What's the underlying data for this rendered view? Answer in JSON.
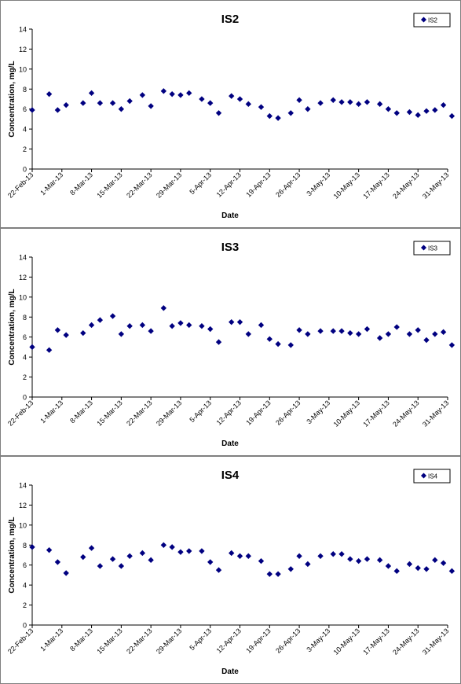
{
  "chart_data": [
    {
      "type": "scatter",
      "title": "IS2",
      "xlabel": "Date",
      "ylabel": "Concentration, mg/L",
      "ylim": [
        0,
        14
      ],
      "yticks": [
        "0",
        "2",
        "4",
        "6",
        "8",
        "10",
        "12",
        "14"
      ],
      "xlim": [
        "2013-02-22",
        "2013-05-31"
      ],
      "xtick_dates": [
        "2013-02-22",
        "2013-03-01",
        "2013-03-08",
        "2013-03-15",
        "2013-03-22",
        "2013-03-29",
        "2013-04-05",
        "2013-04-12",
        "2013-04-19",
        "2013-04-26",
        "2013-05-03",
        "2013-05-10",
        "2013-05-17",
        "2013-05-24",
        "2013-05-31"
      ],
      "xtick_labels": [
        "22-Feb-13",
        "1-Mar-13",
        "8-Mar-13",
        "15-Mar-13",
        "22-Mar-13",
        "29-Mar-13",
        "5-Apr-13",
        "12-Apr-13",
        "19-Apr-13",
        "26-Apr-13",
        "3-May-13",
        "10-May-13",
        "17-May-13",
        "24-May-13",
        "31-May-13"
      ],
      "grid": false,
      "legend_position": "top-right",
      "color": "#000080",
      "series": [
        {
          "name": "IS2",
          "points": [
            {
              "x": "2013-02-22",
              "y": 5.9
            },
            {
              "x": "2013-02-26",
              "y": 7.5
            },
            {
              "x": "2013-02-28",
              "y": 5.9
            },
            {
              "x": "2013-03-02",
              "y": 6.4
            },
            {
              "x": "2013-03-06",
              "y": 6.6
            },
            {
              "x": "2013-03-08",
              "y": 7.6
            },
            {
              "x": "2013-03-10",
              "y": 6.6
            },
            {
              "x": "2013-03-13",
              "y": 6.6
            },
            {
              "x": "2013-03-15",
              "y": 6.0
            },
            {
              "x": "2013-03-17",
              "y": 6.8
            },
            {
              "x": "2013-03-20",
              "y": 7.4
            },
            {
              "x": "2013-03-22",
              "y": 6.3
            },
            {
              "x": "2013-03-25",
              "y": 7.8
            },
            {
              "x": "2013-03-27",
              "y": 7.5
            },
            {
              "x": "2013-03-29",
              "y": 7.4
            },
            {
              "x": "2013-03-31",
              "y": 7.6
            },
            {
              "x": "2013-04-03",
              "y": 7.0
            },
            {
              "x": "2013-04-05",
              "y": 6.6
            },
            {
              "x": "2013-04-07",
              "y": 5.6
            },
            {
              "x": "2013-04-10",
              "y": 7.3
            },
            {
              "x": "2013-04-12",
              "y": 7.0
            },
            {
              "x": "2013-04-14",
              "y": 6.5
            },
            {
              "x": "2013-04-17",
              "y": 6.2
            },
            {
              "x": "2013-04-19",
              "y": 5.3
            },
            {
              "x": "2013-04-21",
              "y": 5.1
            },
            {
              "x": "2013-04-24",
              "y": 5.6
            },
            {
              "x": "2013-04-26",
              "y": 6.9
            },
            {
              "x": "2013-04-28",
              "y": 6.0
            },
            {
              "x": "2013-05-01",
              "y": 6.6
            },
            {
              "x": "2013-05-04",
              "y": 6.9
            },
            {
              "x": "2013-05-06",
              "y": 6.7
            },
            {
              "x": "2013-05-08",
              "y": 6.7
            },
            {
              "x": "2013-05-10",
              "y": 6.5
            },
            {
              "x": "2013-05-12",
              "y": 6.7
            },
            {
              "x": "2013-05-15",
              "y": 6.5
            },
            {
              "x": "2013-05-17",
              "y": 6.0
            },
            {
              "x": "2013-05-19",
              "y": 5.6
            },
            {
              "x": "2013-05-22",
              "y": 5.7
            },
            {
              "x": "2013-05-24",
              "y": 5.4
            },
            {
              "x": "2013-05-26",
              "y": 5.8
            },
            {
              "x": "2013-05-28",
              "y": 5.9
            },
            {
              "x": "2013-05-30",
              "y": 6.4
            },
            {
              "x": "2013-06-01",
              "y": 5.3
            }
          ]
        }
      ]
    },
    {
      "type": "scatter",
      "title": "IS3",
      "xlabel": "Date",
      "ylabel": "Concentration, mg/L",
      "ylim": [
        0,
        14
      ],
      "yticks": [
        "0",
        "2",
        "4",
        "6",
        "8",
        "10",
        "12",
        "14"
      ],
      "xlim": [
        "2013-02-22",
        "2013-05-31"
      ],
      "xtick_dates": [
        "2013-02-22",
        "2013-03-01",
        "2013-03-08",
        "2013-03-15",
        "2013-03-22",
        "2013-03-29",
        "2013-04-05",
        "2013-04-12",
        "2013-04-19",
        "2013-04-26",
        "2013-05-03",
        "2013-05-10",
        "2013-05-17",
        "2013-05-24",
        "2013-05-31"
      ],
      "xtick_labels": [
        "22-Feb-13",
        "1-Mar-13",
        "8-Mar-13",
        "15-Mar-13",
        "22-Mar-13",
        "29-Mar-13",
        "5-Apr-13",
        "12-Apr-13",
        "19-Apr-13",
        "26-Apr-13",
        "3-May-13",
        "10-May-13",
        "17-May-13",
        "24-May-13",
        "31-May-13"
      ],
      "grid": false,
      "legend_position": "top-right",
      "color": "#000080",
      "series": [
        {
          "name": "IS3",
          "points": [
            {
              "x": "2013-02-22",
              "y": 5.0
            },
            {
              "x": "2013-02-26",
              "y": 4.7
            },
            {
              "x": "2013-02-28",
              "y": 6.7
            },
            {
              "x": "2013-03-02",
              "y": 6.2
            },
            {
              "x": "2013-03-06",
              "y": 6.4
            },
            {
              "x": "2013-03-08",
              "y": 7.2
            },
            {
              "x": "2013-03-10",
              "y": 7.7
            },
            {
              "x": "2013-03-13",
              "y": 8.1
            },
            {
              "x": "2013-03-15",
              "y": 6.3
            },
            {
              "x": "2013-03-17",
              "y": 7.1
            },
            {
              "x": "2013-03-20",
              "y": 7.2
            },
            {
              "x": "2013-03-22",
              "y": 6.6
            },
            {
              "x": "2013-03-25",
              "y": 8.9
            },
            {
              "x": "2013-03-27",
              "y": 7.1
            },
            {
              "x": "2013-03-29",
              "y": 7.4
            },
            {
              "x": "2013-03-31",
              "y": 7.2
            },
            {
              "x": "2013-04-03",
              "y": 7.1
            },
            {
              "x": "2013-04-05",
              "y": 6.8
            },
            {
              "x": "2013-04-07",
              "y": 5.5
            },
            {
              "x": "2013-04-10",
              "y": 7.5
            },
            {
              "x": "2013-04-12",
              "y": 7.5
            },
            {
              "x": "2013-04-14",
              "y": 6.3
            },
            {
              "x": "2013-04-17",
              "y": 7.2
            },
            {
              "x": "2013-04-19",
              "y": 5.8
            },
            {
              "x": "2013-04-21",
              "y": 5.3
            },
            {
              "x": "2013-04-24",
              "y": 5.2
            },
            {
              "x": "2013-04-26",
              "y": 6.7
            },
            {
              "x": "2013-04-28",
              "y": 6.3
            },
            {
              "x": "2013-05-01",
              "y": 6.6
            },
            {
              "x": "2013-05-04",
              "y": 6.6
            },
            {
              "x": "2013-05-06",
              "y": 6.6
            },
            {
              "x": "2013-05-08",
              "y": 6.4
            },
            {
              "x": "2013-05-10",
              "y": 6.3
            },
            {
              "x": "2013-05-12",
              "y": 6.8
            },
            {
              "x": "2013-05-15",
              "y": 5.9
            },
            {
              "x": "2013-05-17",
              "y": 6.3
            },
            {
              "x": "2013-05-19",
              "y": 7.0
            },
            {
              "x": "2013-05-22",
              "y": 6.3
            },
            {
              "x": "2013-05-24",
              "y": 6.7
            },
            {
              "x": "2013-05-26",
              "y": 5.7
            },
            {
              "x": "2013-05-28",
              "y": 6.3
            },
            {
              "x": "2013-05-30",
              "y": 6.5
            },
            {
              "x": "2013-06-01",
              "y": 5.2
            }
          ]
        }
      ]
    },
    {
      "type": "scatter",
      "title": "IS4",
      "xlabel": "Date",
      "ylabel": "Concentration, mg/L",
      "ylim": [
        0,
        14
      ],
      "yticks": [
        "0",
        "2",
        "4",
        "6",
        "8",
        "10",
        "12",
        "14"
      ],
      "xlim": [
        "2013-02-22",
        "2013-05-31"
      ],
      "xtick_dates": [
        "2013-02-22",
        "2013-03-01",
        "2013-03-08",
        "2013-03-15",
        "2013-03-22",
        "2013-03-29",
        "2013-04-05",
        "2013-04-12",
        "2013-04-19",
        "2013-04-26",
        "2013-05-03",
        "2013-05-10",
        "2013-05-17",
        "2013-05-24",
        "2013-05-31"
      ],
      "xtick_labels": [
        "22-Feb-13",
        "1-Mar-13",
        "8-Mar-13",
        "15-Mar-13",
        "22-Mar-13",
        "29-Mar-13",
        "5-Apr-13",
        "12-Apr-13",
        "19-Apr-13",
        "26-Apr-13",
        "3-May-13",
        "10-May-13",
        "17-May-13",
        "24-May-13",
        "31-May-13"
      ],
      "grid": false,
      "legend_position": "top-right",
      "color": "#000080",
      "series": [
        {
          "name": "IS4",
          "points": [
            {
              "x": "2013-02-22",
              "y": 7.8
            },
            {
              "x": "2013-02-26",
              "y": 7.5
            },
            {
              "x": "2013-02-28",
              "y": 6.3
            },
            {
              "x": "2013-03-02",
              "y": 5.2
            },
            {
              "x": "2013-03-06",
              "y": 6.8
            },
            {
              "x": "2013-03-08",
              "y": 7.7
            },
            {
              "x": "2013-03-10",
              "y": 5.9
            },
            {
              "x": "2013-03-13",
              "y": 6.6
            },
            {
              "x": "2013-03-15",
              "y": 5.9
            },
            {
              "x": "2013-03-17",
              "y": 6.9
            },
            {
              "x": "2013-03-20",
              "y": 7.2
            },
            {
              "x": "2013-03-22",
              "y": 6.5
            },
            {
              "x": "2013-03-25",
              "y": 8.0
            },
            {
              "x": "2013-03-27",
              "y": 7.8
            },
            {
              "x": "2013-03-29",
              "y": 7.3
            },
            {
              "x": "2013-03-31",
              "y": 7.4
            },
            {
              "x": "2013-04-03",
              "y": 7.4
            },
            {
              "x": "2013-04-05",
              "y": 6.3
            },
            {
              "x": "2013-04-07",
              "y": 5.5
            },
            {
              "x": "2013-04-10",
              "y": 7.2
            },
            {
              "x": "2013-04-12",
              "y": 6.9
            },
            {
              "x": "2013-04-14",
              "y": 6.9
            },
            {
              "x": "2013-04-17",
              "y": 6.4
            },
            {
              "x": "2013-04-19",
              "y": 5.1
            },
            {
              "x": "2013-04-21",
              "y": 5.1
            },
            {
              "x": "2013-04-24",
              "y": 5.6
            },
            {
              "x": "2013-04-26",
              "y": 6.9
            },
            {
              "x": "2013-04-28",
              "y": 6.1
            },
            {
              "x": "2013-05-01",
              "y": 6.9
            },
            {
              "x": "2013-05-04",
              "y": 7.1
            },
            {
              "x": "2013-05-06",
              "y": 7.1
            },
            {
              "x": "2013-05-08",
              "y": 6.6
            },
            {
              "x": "2013-05-10",
              "y": 6.4
            },
            {
              "x": "2013-05-12",
              "y": 6.6
            },
            {
              "x": "2013-05-15",
              "y": 6.5
            },
            {
              "x": "2013-05-17",
              "y": 5.9
            },
            {
              "x": "2013-05-19",
              "y": 5.4
            },
            {
              "x": "2013-05-22",
              "y": 6.1
            },
            {
              "x": "2013-05-24",
              "y": 5.7
            },
            {
              "x": "2013-05-26",
              "y": 5.6
            },
            {
              "x": "2013-05-28",
              "y": 6.5
            },
            {
              "x": "2013-05-30",
              "y": 6.2
            },
            {
              "x": "2013-06-01",
              "y": 5.4
            }
          ]
        }
      ]
    }
  ]
}
